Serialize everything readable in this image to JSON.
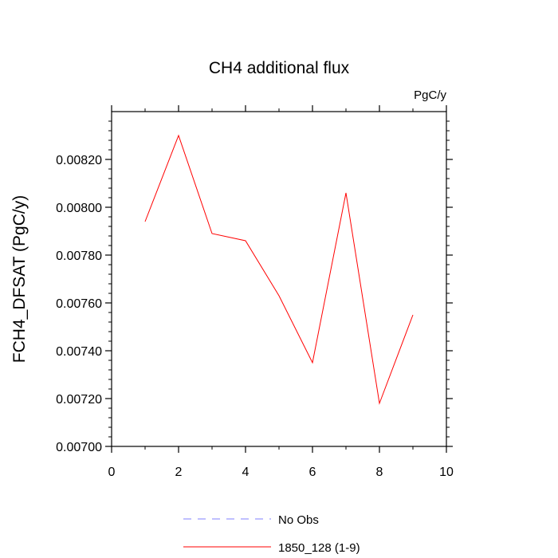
{
  "chart_data": {
    "type": "line",
    "title": "CH4 additional flux",
    "units": "PgC/y",
    "xlabel": "",
    "ylabel": "FCH4_DFSAT  (PgC/y)",
    "xlim": [
      0,
      10
    ],
    "ylim": [
      0.007,
      0.0084
    ],
    "xticks": [
      0,
      2,
      4,
      6,
      8,
      10
    ],
    "xtick_labels": [
      "0",
      "2",
      "4",
      "6",
      "8",
      "10"
    ],
    "yticks": [
      0.007,
      0.0072,
      0.0074,
      0.0076,
      0.0078,
      0.008,
      0.0082
    ],
    "ytick_labels": [
      "0.00700",
      "0.00720",
      "0.00740",
      "0.00760",
      "0.00780",
      "0.00800",
      "0.00820"
    ],
    "grid": false,
    "legend_position": "bottom-center",
    "series": [
      {
        "name": "1850_128 (1-9)",
        "color": "#ff0000",
        "dash": "solid",
        "x": [
          1,
          2,
          3,
          4,
          5,
          6,
          7,
          8,
          9
        ],
        "y": [
          0.00794,
          0.0083,
          0.00789,
          0.00786,
          0.00763,
          0.00735,
          0.00806,
          0.00718,
          0.00755
        ]
      }
    ],
    "legend": [
      {
        "label": "No Obs",
        "color": "#8080ff",
        "dash": "dashed"
      },
      {
        "label": "1850_128 (1-9)",
        "color": "#ff0000",
        "dash": "solid"
      }
    ]
  }
}
